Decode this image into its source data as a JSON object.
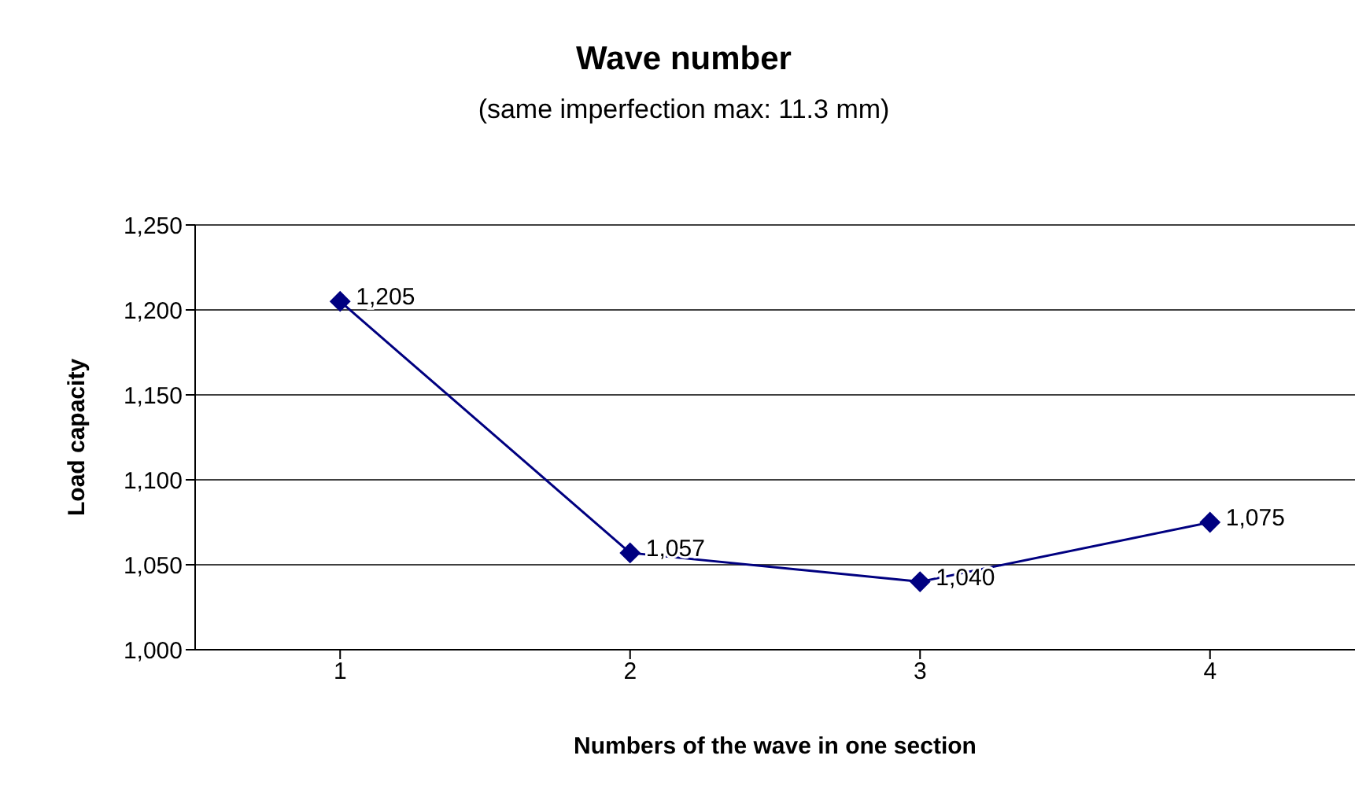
{
  "chart_data": {
    "type": "line",
    "title": "Wave number",
    "subtitle": "(same imperfection max: 11.3 mm)",
    "xlabel": "Numbers of the wave in one section",
    "ylabel": "Load capacity",
    "categories": [
      "1",
      "2",
      "3",
      "4"
    ],
    "series": [
      {
        "color": "#000080",
        "values": [
          1205,
          1057,
          1040,
          1075
        ],
        "value_labels": [
          "1,205",
          "1,057",
          "1,040",
          "1,075"
        ]
      }
    ],
    "ylim": [
      1000,
      1250
    ],
    "yticks": [
      {
        "value": 1000,
        "label": "1,000"
      },
      {
        "value": 1050,
        "label": "1,050"
      },
      {
        "value": 1100,
        "label": "1,100"
      },
      {
        "value": 1150,
        "label": "1,150"
      },
      {
        "value": 1200,
        "label": "1,200"
      },
      {
        "value": 1250,
        "label": "1,250"
      }
    ],
    "grid": "y",
    "marker": "diamond",
    "line_style": "solid"
  }
}
